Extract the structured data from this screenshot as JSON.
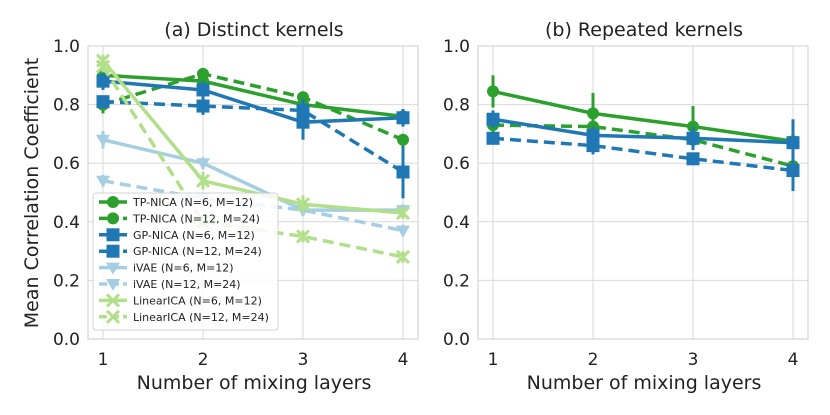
{
  "chart_data": [
    {
      "type": "line",
      "title": "(a) Distinct kernels",
      "xlabel": "Number of mixing layers",
      "ylabel": "Mean Correlation Coefficient",
      "x": [
        1,
        2,
        3,
        4
      ],
      "xticks": [
        "1",
        "2",
        "3",
        "4"
      ],
      "ylim": [
        0.0,
        1.0
      ],
      "yticks": [
        "0.0",
        "0.2",
        "0.4",
        "0.6",
        "0.8",
        "1.0"
      ],
      "legend_position": "lower-left",
      "series": [
        {
          "name": "TP-NICA (N=6, M=12)",
          "color": "#2ca02c",
          "dash": "solid",
          "marker": "circle",
          "values": [
            0.9,
            0.88,
            0.8,
            0.76
          ],
          "errors": [
            0.02,
            0.02,
            0.03,
            0.02
          ]
        },
        {
          "name": "TP-NICA (N=12, M=24)",
          "color": "#2ca02c",
          "dash": "dashed",
          "marker": "circle",
          "values": [
            0.8,
            0.905,
            0.825,
            0.68
          ],
          "errors": [
            0.03,
            0.02,
            0.02,
            0.02
          ]
        },
        {
          "name": "GP-NICA (N=6, M=12)",
          "color": "#1f77b4",
          "dash": "solid",
          "marker": "square",
          "values": [
            0.88,
            0.85,
            0.74,
            0.755
          ],
          "errors": [
            0.03,
            0.03,
            0.06,
            0.03
          ]
        },
        {
          "name": "GP-NICA (N=12, M=24)",
          "color": "#1f77b4",
          "dash": "dashed",
          "marker": "square",
          "values": [
            0.81,
            0.795,
            0.78,
            0.57
          ],
          "errors": [
            0.02,
            0.03,
            0.04,
            0.09
          ]
        },
        {
          "name": "iVAE (N=6, M=12)",
          "color": "#a6cee3",
          "dash": "solid",
          "marker": "triangle-down",
          "values": [
            0.68,
            0.6,
            0.44,
            0.44
          ],
          "errors": [
            0.03,
            0.02,
            0.02,
            0.02
          ]
        },
        {
          "name": "iVAE (N=12, M=24)",
          "color": "#a6cee3",
          "dash": "dashed",
          "marker": "triangle-down",
          "values": [
            0.54,
            0.48,
            0.44,
            0.37
          ],
          "errors": [
            0.02,
            0.02,
            0.02,
            0.02
          ]
        },
        {
          "name": "LinearICA (N=6, M=12)",
          "color": "#b2df8a",
          "dash": "solid",
          "marker": "x",
          "values": [
            0.95,
            0.54,
            0.46,
            0.43
          ],
          "errors": [
            0.02,
            0.03,
            0.03,
            0.02
          ]
        },
        {
          "name": "LinearICA (N=12, M=24)",
          "color": "#b2df8a",
          "dash": "dashed",
          "marker": "x",
          "values": [
            0.93,
            0.4,
            0.35,
            0.28
          ],
          "errors": [
            0.02,
            0.02,
            0.02,
            0.02
          ]
        }
      ]
    },
    {
      "type": "line",
      "title": "(b) Repeated kernels",
      "xlabel": "Number of mixing layers",
      "ylabel": "",
      "x": [
        1,
        2,
        3,
        4
      ],
      "xticks": [
        "1",
        "2",
        "3",
        "4"
      ],
      "ylim": [
        0.0,
        1.0
      ],
      "yticks": [
        "0.0",
        "0.2",
        "0.4",
        "0.6",
        "0.8",
        "1.0"
      ],
      "series": [
        {
          "name": "TP-NICA (N=6, M=12)",
          "color": "#2ca02c",
          "dash": "solid",
          "marker": "circle",
          "values": [
            0.845,
            0.77,
            0.725,
            0.675
          ],
          "errors": [
            0.055,
            0.07,
            0.07,
            0.03
          ]
        },
        {
          "name": "TP-NICA (N=12, M=24)",
          "color": "#2ca02c",
          "dash": "dashed",
          "marker": "circle",
          "values": [
            0.73,
            0.725,
            0.68,
            0.59
          ],
          "errors": [
            0.03,
            0.03,
            0.03,
            0.02
          ]
        },
        {
          "name": "GP-NICA (N=6, M=12)",
          "color": "#1f77b4",
          "dash": "solid",
          "marker": "square",
          "values": [
            0.75,
            0.695,
            0.685,
            0.67
          ],
          "errors": [
            0.03,
            0.03,
            0.04,
            0.08
          ]
        },
        {
          "name": "GP-NICA (N=12, M=24)",
          "color": "#1f77b4",
          "dash": "dashed",
          "marker": "square",
          "values": [
            0.685,
            0.66,
            0.615,
            0.575
          ],
          "errors": [
            0.02,
            0.03,
            0.02,
            0.07
          ]
        }
      ]
    }
  ]
}
